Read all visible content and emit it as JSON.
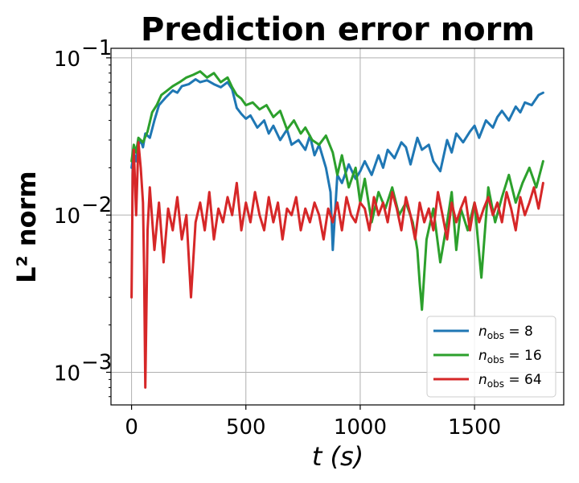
{
  "chart_data": {
    "type": "line",
    "title": "Prediction error norm",
    "xlabel": "t (s)",
    "ylabel": "L² norm",
    "yscale": "log",
    "xlim": [
      -90,
      1890
    ],
    "ylim": [
      0.00062,
      0.115
    ],
    "x_ticks": [
      0,
      500,
      1000,
      1500
    ],
    "x_tick_labels": [
      "0",
      "500",
      "1000",
      "1500"
    ],
    "y_ticks": [
      0.001,
      0.01,
      0.1
    ],
    "y_tick_labels": [
      "10",
      "10",
      "10"
    ],
    "y_tick_exponents": [
      "−3",
      "−2",
      "−1"
    ],
    "grid": true,
    "legend_placement": "lower-right",
    "series": [
      {
        "name": "n_obs = 8",
        "legend_base": "n",
        "legend_sub": "obs",
        "legend_rest": " = 8",
        "color": "#1f77b4",
        "x": [
          0,
          10,
          20,
          30,
          40,
          50,
          60,
          80,
          100,
          120,
          150,
          180,
          200,
          220,
          250,
          280,
          300,
          330,
          360,
          390,
          420,
          440,
          460,
          480,
          500,
          520,
          550,
          580,
          600,
          620,
          650,
          680,
          700,
          730,
          760,
          780,
          800,
          820,
          850,
          870,
          880,
          900,
          920,
          950,
          980,
          1000,
          1020,
          1050,
          1080,
          1100,
          1120,
          1150,
          1180,
          1200,
          1220,
          1250,
          1270,
          1300,
          1320,
          1350,
          1380,
          1400,
          1420,
          1450,
          1480,
          1500,
          1520,
          1550,
          1580,
          1600,
          1620,
          1650,
          1680,
          1700,
          1720,
          1750,
          1780,
          1800
        ],
        "y": [
          0.02,
          0.025,
          0.022,
          0.028,
          0.03,
          0.027,
          0.033,
          0.031,
          0.04,
          0.05,
          0.056,
          0.062,
          0.06,
          0.066,
          0.068,
          0.073,
          0.07,
          0.072,
          0.068,
          0.065,
          0.07,
          0.063,
          0.048,
          0.044,
          0.041,
          0.043,
          0.036,
          0.04,
          0.033,
          0.037,
          0.03,
          0.035,
          0.028,
          0.03,
          0.026,
          0.032,
          0.024,
          0.028,
          0.02,
          0.014,
          0.006,
          0.018,
          0.016,
          0.021,
          0.017,
          0.019,
          0.022,
          0.018,
          0.024,
          0.02,
          0.026,
          0.023,
          0.029,
          0.027,
          0.021,
          0.031,
          0.026,
          0.028,
          0.022,
          0.019,
          0.03,
          0.025,
          0.033,
          0.029,
          0.034,
          0.037,
          0.031,
          0.04,
          0.036,
          0.042,
          0.046,
          0.04,
          0.049,
          0.045,
          0.052,
          0.05,
          0.058,
          0.06
        ]
      },
      {
        "name": "n_obs = 16",
        "legend_base": "n",
        "legend_sub": "obs",
        "legend_rest": " = 16",
        "color": "#2ca02c",
        "x": [
          0,
          10,
          20,
          30,
          50,
          70,
          90,
          110,
          130,
          150,
          180,
          210,
          240,
          270,
          300,
          330,
          360,
          390,
          420,
          440,
          460,
          480,
          500,
          530,
          560,
          590,
          620,
          650,
          680,
          710,
          740,
          760,
          790,
          820,
          850,
          880,
          900,
          920,
          950,
          980,
          1000,
          1020,
          1050,
          1080,
          1110,
          1140,
          1170,
          1200,
          1230,
          1250,
          1260,
          1270,
          1290,
          1320,
          1350,
          1380,
          1400,
          1420,
          1440,
          1470,
          1500,
          1530,
          1560,
          1590,
          1620,
          1650,
          1680,
          1710,
          1740,
          1770,
          1800
        ],
        "y": [
          0.022,
          0.028,
          0.025,
          0.031,
          0.029,
          0.034,
          0.045,
          0.05,
          0.058,
          0.061,
          0.066,
          0.07,
          0.075,
          0.078,
          0.082,
          0.075,
          0.08,
          0.07,
          0.075,
          0.065,
          0.058,
          0.055,
          0.05,
          0.052,
          0.047,
          0.05,
          0.042,
          0.046,
          0.035,
          0.04,
          0.033,
          0.036,
          0.03,
          0.028,
          0.032,
          0.025,
          0.018,
          0.024,
          0.015,
          0.02,
          0.012,
          0.017,
          0.009,
          0.014,
          0.011,
          0.015,
          0.01,
          0.012,
          0.009,
          0.006,
          0.0037,
          0.0025,
          0.007,
          0.011,
          0.005,
          0.009,
          0.014,
          0.006,
          0.011,
          0.008,
          0.012,
          0.004,
          0.015,
          0.009,
          0.013,
          0.018,
          0.012,
          0.016,
          0.02,
          0.015,
          0.022
        ]
      },
      {
        "name": "n_obs = 64",
        "legend_base": "n",
        "legend_sub": "obs",
        "legend_rest": " = 64",
        "color": "#d62728",
        "x": [
          0,
          5,
          10,
          20,
          30,
          40,
          50,
          55,
          60,
          70,
          80,
          100,
          120,
          140,
          160,
          180,
          200,
          220,
          240,
          260,
          280,
          300,
          320,
          340,
          360,
          380,
          400,
          420,
          440,
          460,
          480,
          500,
          520,
          540,
          560,
          580,
          600,
          620,
          640,
          660,
          680,
          700,
          720,
          740,
          760,
          780,
          800,
          820,
          840,
          860,
          880,
          900,
          920,
          940,
          960,
          980,
          1000,
          1020,
          1040,
          1060,
          1080,
          1100,
          1120,
          1140,
          1160,
          1180,
          1200,
          1220,
          1240,
          1260,
          1280,
          1300,
          1320,
          1340,
          1360,
          1380,
          1400,
          1420,
          1440,
          1460,
          1480,
          1500,
          1520,
          1540,
          1560,
          1580,
          1600,
          1620,
          1640,
          1660,
          1680,
          1700,
          1720,
          1740,
          1760,
          1780,
          1800
        ],
        "y": [
          0.003,
          0.018,
          0.026,
          0.01,
          0.029,
          0.02,
          0.012,
          0.0045,
          0.0008,
          0.008,
          0.015,
          0.006,
          0.012,
          0.005,
          0.011,
          0.008,
          0.013,
          0.007,
          0.01,
          0.003,
          0.009,
          0.012,
          0.008,
          0.014,
          0.007,
          0.011,
          0.009,
          0.013,
          0.01,
          0.016,
          0.008,
          0.012,
          0.009,
          0.014,
          0.01,
          0.008,
          0.013,
          0.009,
          0.012,
          0.007,
          0.011,
          0.01,
          0.013,
          0.008,
          0.011,
          0.009,
          0.012,
          0.01,
          0.007,
          0.011,
          0.009,
          0.012,
          0.008,
          0.013,
          0.01,
          0.009,
          0.012,
          0.011,
          0.008,
          0.013,
          0.01,
          0.012,
          0.009,
          0.014,
          0.011,
          0.008,
          0.013,
          0.01,
          0.007,
          0.012,
          0.009,
          0.011,
          0.008,
          0.014,
          0.01,
          0.007,
          0.012,
          0.009,
          0.011,
          0.013,
          0.008,
          0.012,
          0.009,
          0.011,
          0.013,
          0.01,
          0.012,
          0.009,
          0.014,
          0.011,
          0.008,
          0.013,
          0.01,
          0.012,
          0.015,
          0.011,
          0.016
        ]
      }
    ]
  }
}
